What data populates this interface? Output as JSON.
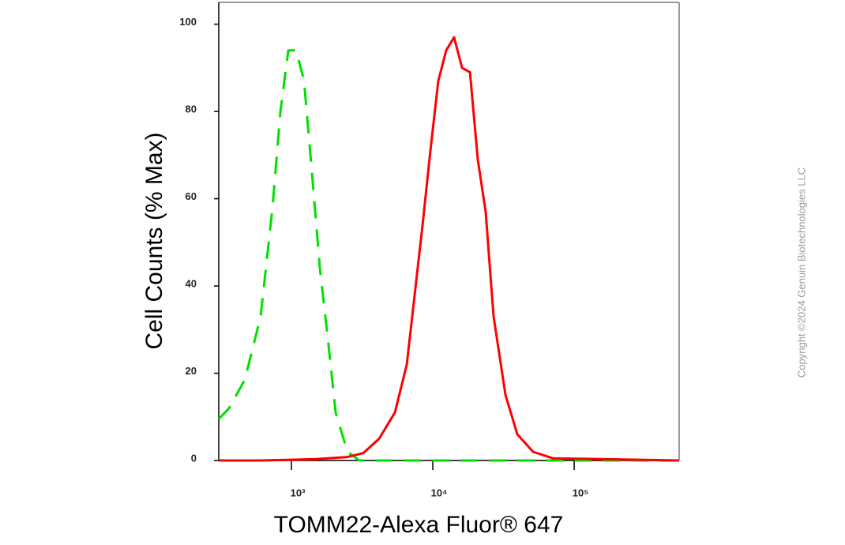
{
  "chart_data": {
    "type": "line",
    "xscale": "log",
    "xlabel": "TOMM22-Alexa Fluor® 647",
    "ylabel": "Cell Counts (% Max)",
    "watermark": "Copyright ©2024 Genuin Biotechnologies LLC",
    "xlim": [
      306,
      553000
    ],
    "ylim": [
      0,
      105
    ],
    "xticks": [
      {
        "value": 1000,
        "label": "10³"
      },
      {
        "value": 10000,
        "label": "10⁴"
      },
      {
        "value": 100000,
        "label": "10⁵"
      }
    ],
    "yticks": [
      0,
      20,
      40,
      60,
      80,
      100
    ],
    "series": [
      {
        "color": "#00e000",
        "dash": true,
        "x": [
          306,
          362,
          468,
          605,
          735,
          836,
          950,
          1081,
          1228,
          1397,
          1589,
          1807,
          2055,
          2490,
          3020,
          553000
        ],
        "values": [
          9.5,
          12,
          18.5,
          33,
          58,
          80,
          94,
          94,
          87,
          66,
          44,
          28,
          11,
          2,
          0,
          0
        ]
      },
      {
        "color": "#ff0000",
        "dash": false,
        "x": [
          306,
          605,
          1489,
          2490,
          3224,
          4170,
          5395,
          6545,
          7445,
          8460,
          9620,
          10940,
          12440,
          14150,
          16100,
          18320,
          20800,
          23660,
          26900,
          32660,
          39630,
          51200,
          70630,
          553000
        ],
        "values": [
          0,
          0,
          0.3,
          0.8,
          1.7,
          5,
          11,
          22,
          38,
          54,
          71,
          87,
          94,
          97,
          90,
          89,
          69,
          57,
          33,
          15,
          6,
          2,
          0.5,
          0
        ]
      }
    ]
  }
}
